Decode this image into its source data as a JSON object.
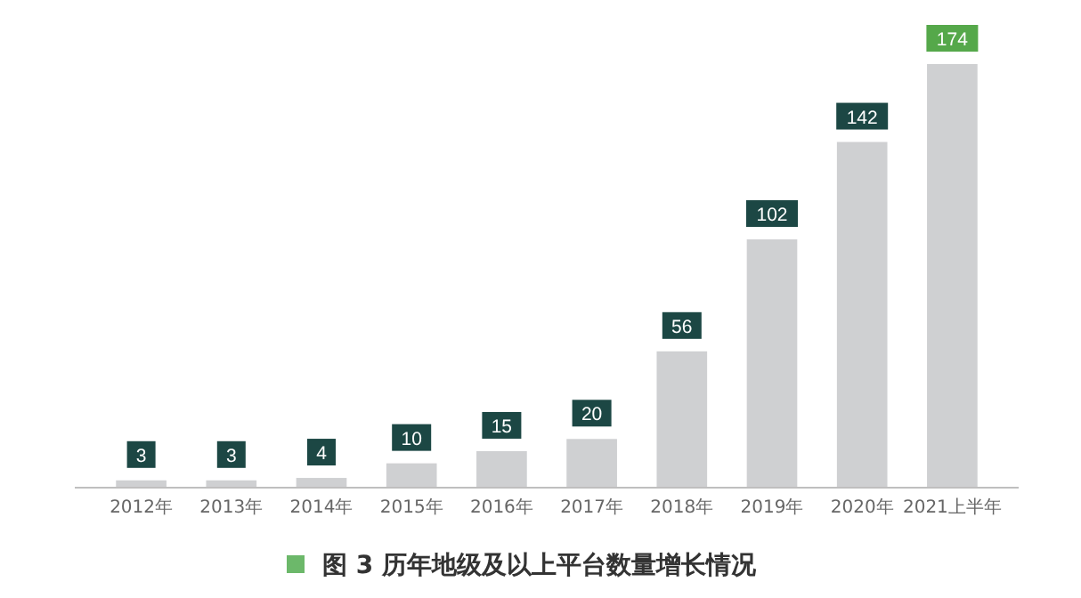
{
  "chart_data": {
    "type": "bar",
    "title": "图 3 历年地级及以上平台数量增长情况",
    "categories": [
      "2012年",
      "2013年",
      "2014年",
      "2015年",
      "2016年",
      "2017年",
      "2018年",
      "2019年",
      "2020年",
      "2021上半年"
    ],
    "values": [
      3,
      3,
      4,
      10,
      15,
      20,
      56,
      102,
      142,
      174
    ],
    "color": "#cfd0d2",
    "data_labels": true
  }
}
